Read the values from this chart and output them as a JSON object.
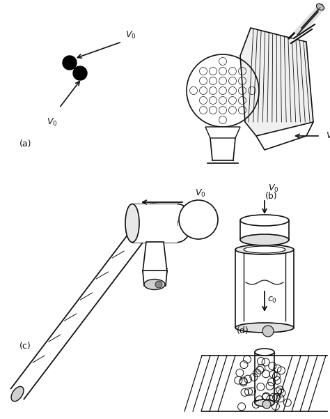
{
  "fig_width": 4.74,
  "fig_height": 6.01,
  "dpi": 100,
  "bg_color": "#ffffff",
  "label_a": "(a)",
  "label_b": "(b)",
  "label_c": "(c)",
  "label_d": "(d)",
  "v0_label": "$V_0$",
  "c0_label": "$c_0$",
  "font_size_label": 9,
  "font_size_v": 9,
  "line_color": "#111111"
}
